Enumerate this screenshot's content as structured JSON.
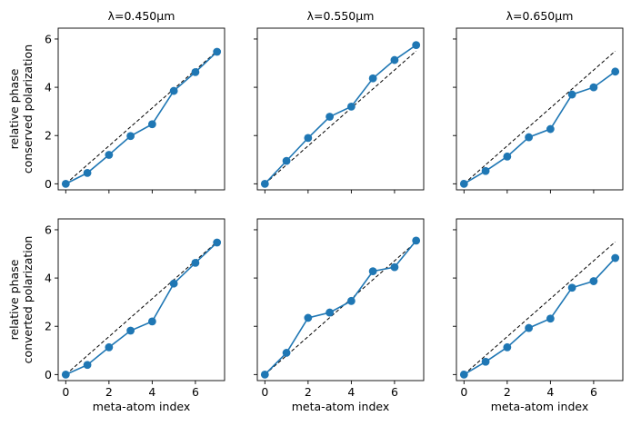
{
  "chart_data": {
    "type": "line",
    "layout": "2x3 grid of subplots, shared x and y axes",
    "xlabel": "meta-atom index",
    "row_ylabels": [
      [
        "relative phase",
        "conserved polarization"
      ],
      [
        "relative phase",
        "converted polarization"
      ]
    ],
    "xlim": [
      -0.35,
      7.35
    ],
    "ylim": [
      -0.25,
      6.45
    ],
    "xticks": [
      0,
      2,
      4,
      6
    ],
    "yticks": [
      0,
      2,
      4,
      6
    ],
    "series_color": "#1f77b4",
    "ideal_color": "#000000",
    "x": [
      0,
      1,
      2,
      3,
      4,
      5,
      6,
      7
    ],
    "ideal": {
      "name": "linear phase reference",
      "x": [
        0,
        7
      ],
      "y": [
        0,
        5.5
      ]
    },
    "panels": [
      {
        "row": 0,
        "col": 0,
        "title": "λ=0.450μm",
        "y": [
          0,
          0.45,
          1.2,
          1.98,
          2.47,
          3.85,
          4.63,
          5.47
        ]
      },
      {
        "row": 0,
        "col": 1,
        "title": "λ=0.550μm",
        "y": [
          0,
          0.95,
          1.9,
          2.78,
          3.2,
          4.37,
          5.13,
          5.75
        ]
      },
      {
        "row": 0,
        "col": 2,
        "title": "λ=0.650μm",
        "y": [
          0,
          0.53,
          1.13,
          1.93,
          2.27,
          3.7,
          4.0,
          4.65
        ]
      },
      {
        "row": 1,
        "col": 0,
        "title": "",
        "y": [
          0,
          0.4,
          1.13,
          1.82,
          2.2,
          3.77,
          4.63,
          5.47
        ]
      },
      {
        "row": 1,
        "col": 1,
        "title": "",
        "y": [
          0,
          0.9,
          2.35,
          2.57,
          3.05,
          4.28,
          4.45,
          5.55
        ]
      },
      {
        "row": 1,
        "col": 2,
        "title": "",
        "y": [
          0,
          0.53,
          1.13,
          1.93,
          2.32,
          3.6,
          3.87,
          4.83
        ]
      }
    ]
  }
}
